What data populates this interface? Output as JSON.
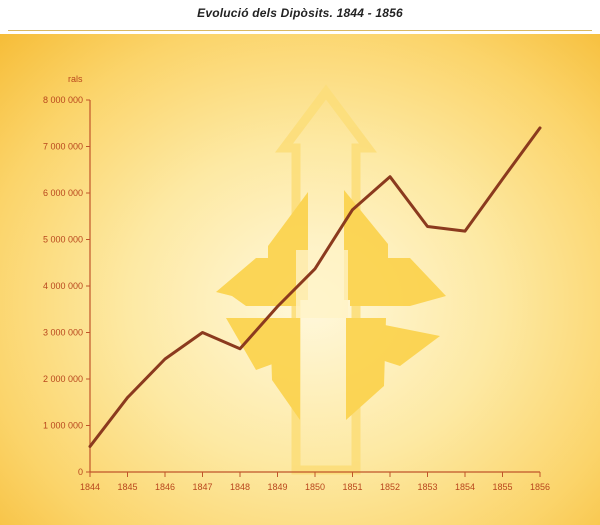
{
  "page": {
    "title": "Evolució dels Dipòsits. 1844 - 1856"
  },
  "chart_data": {
    "type": "line",
    "title": "Evolució dels Dipòsits. 1844 - 1856",
    "ylabel": "rals",
    "xlabel": "",
    "categories": [
      "1844",
      "1845",
      "1846",
      "1847",
      "1848",
      "1849",
      "1850",
      "1851",
      "1852",
      "1853",
      "1854",
      "1855",
      "1856"
    ],
    "y_ticks": [
      "0",
      "1 000 000",
      "2 000 000",
      "3 000 000",
      "4 000 000",
      "5 000 000",
      "6 000 000",
      "7 000 000",
      "8 000 000"
    ],
    "ylim": [
      0,
      8000000
    ],
    "series": [
      {
        "values": [
          550000,
          1600000,
          2430000,
          3000000,
          2650000,
          3560000,
          4370000,
          5640000,
          6350000,
          5280000,
          5180000,
          6300000,
          7400000
        ]
      }
    ],
    "grid": false,
    "legend": "none",
    "colors": {
      "line": "#8b3a1e",
      "axis": "#c0552a",
      "tick_text": "#b8461d",
      "emblem": "#fbd24a",
      "emblem_outline": "#fcde7a"
    }
  }
}
